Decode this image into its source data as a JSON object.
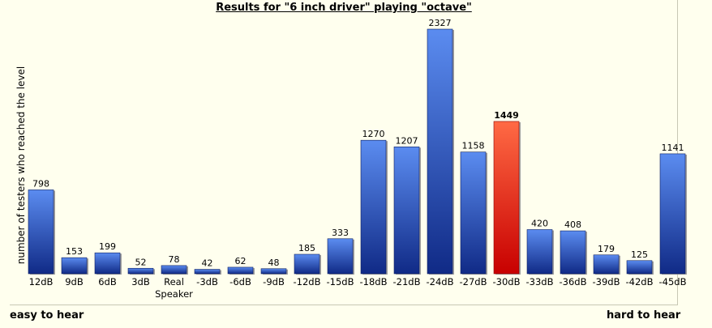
{
  "title": "Results for \"6 inch driver\" playing \"octave\"",
  "footer": {
    "left": "easy to hear",
    "right": "hard to hear"
  },
  "colors": {
    "bar_top": "#5b8cf0",
    "bar_bottom": "#102a86",
    "highlight_top": "#ff6a44",
    "highlight_bottom": "#c80000",
    "background": "#ffffee"
  },
  "chart_data": {
    "type": "bar",
    "title": "Results for \"6 inch driver\" playing \"octave\"",
    "xlabel": "",
    "ylabel": "number of testers who reached the level",
    "categories": [
      "12dB",
      "9dB",
      "6dB",
      "3dB",
      "Real Speaker",
      "-3dB",
      "-6dB",
      "-9dB",
      "-12dB",
      "-15dB",
      "-18dB",
      "-21dB",
      "-24dB",
      "-27dB",
      "-30dB",
      "-33dB",
      "-36dB",
      "-39dB",
      "-42dB",
      "-45dB"
    ],
    "values": [
      798,
      153,
      199,
      52,
      78,
      42,
      62,
      48,
      185,
      333,
      1270,
      1207,
      2327,
      1158,
      1449,
      420,
      408,
      179,
      125,
      1141
    ],
    "highlight_index": 14,
    "ylim": [
      0,
      2327
    ],
    "grid": false,
    "legend": "none"
  }
}
